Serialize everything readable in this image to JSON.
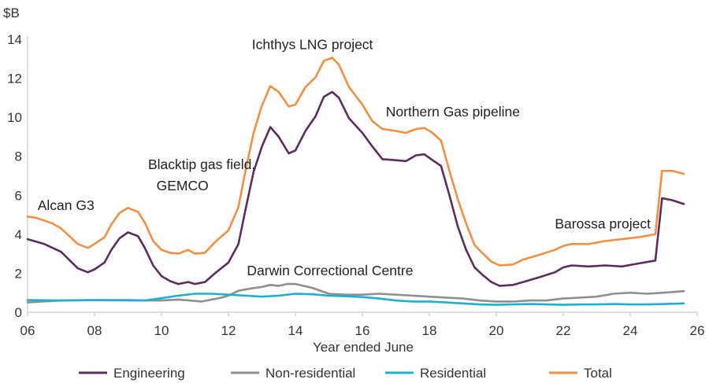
{
  "chart_data": {
    "type": "line",
    "ylabel": "$B",
    "xlabel": "Year ended June",
    "xlim": [
      2006,
      2026
    ],
    "ylim": [
      0,
      14
    ],
    "x_ticks": [
      2006,
      2008,
      2010,
      2012,
      2014,
      2016,
      2018,
      2020,
      2022,
      2024,
      2026
    ],
    "x_tick_labels": [
      "06",
      "08",
      "10",
      "12",
      "14",
      "16",
      "18",
      "20",
      "22",
      "24",
      "26"
    ],
    "y_ticks": [
      0,
      2,
      4,
      6,
      8,
      10,
      12,
      14
    ],
    "y_tick_labels": [
      "0",
      "2",
      "4",
      "6",
      "8",
      "10",
      "12",
      "14"
    ],
    "legend_position": "bottom",
    "series": [
      {
        "name": "Engineering",
        "color": "#5b2d5e",
        "points": [
          [
            2006.0,
            3.75
          ],
          [
            2006.5,
            3.5
          ],
          [
            2007.0,
            3.1
          ],
          [
            2007.5,
            2.25
          ],
          [
            2007.8,
            2.05
          ],
          [
            2008.0,
            2.2
          ],
          [
            2008.3,
            2.55
          ],
          [
            2008.5,
            3.2
          ],
          [
            2008.75,
            3.8
          ],
          [
            2009.0,
            4.1
          ],
          [
            2009.3,
            3.9
          ],
          [
            2009.5,
            3.3
          ],
          [
            2009.75,
            2.4
          ],
          [
            2010.0,
            1.85
          ],
          [
            2010.25,
            1.6
          ],
          [
            2010.5,
            1.45
          ],
          [
            2010.8,
            1.55
          ],
          [
            2011.0,
            1.45
          ],
          [
            2011.3,
            1.55
          ],
          [
            2011.6,
            2.0
          ],
          [
            2012.0,
            2.55
          ],
          [
            2012.3,
            3.5
          ],
          [
            2012.5,
            5.2
          ],
          [
            2012.75,
            7.2
          ],
          [
            2013.0,
            8.5
          ],
          [
            2013.25,
            9.5
          ],
          [
            2013.5,
            9.0
          ],
          [
            2013.8,
            8.15
          ],
          [
            2014.0,
            8.3
          ],
          [
            2014.3,
            9.3
          ],
          [
            2014.6,
            10.05
          ],
          [
            2014.85,
            11.05
          ],
          [
            2015.1,
            11.3
          ],
          [
            2015.3,
            11.0
          ],
          [
            2015.6,
            9.95
          ],
          [
            2016.0,
            9.2
          ],
          [
            2016.3,
            8.5
          ],
          [
            2016.6,
            7.85
          ],
          [
            2017.0,
            7.8
          ],
          [
            2017.3,
            7.75
          ],
          [
            2017.6,
            8.05
          ],
          [
            2017.85,
            8.1
          ],
          [
            2018.1,
            7.8
          ],
          [
            2018.35,
            7.5
          ],
          [
            2018.6,
            6.0
          ],
          [
            2018.85,
            4.4
          ],
          [
            2019.1,
            3.2
          ],
          [
            2019.35,
            2.3
          ],
          [
            2019.6,
            1.9
          ],
          [
            2019.85,
            1.55
          ],
          [
            2020.1,
            1.35
          ],
          [
            2020.5,
            1.4
          ],
          [
            2020.8,
            1.55
          ],
          [
            2021.3,
            1.8
          ],
          [
            2021.75,
            2.05
          ],
          [
            2022.0,
            2.3
          ],
          [
            2022.25,
            2.4
          ],
          [
            2022.75,
            2.35
          ],
          [
            2023.25,
            2.4
          ],
          [
            2023.75,
            2.35
          ],
          [
            2024.25,
            2.5
          ],
          [
            2024.75,
            2.65
          ],
          [
            2024.95,
            5.85
          ],
          [
            2025.25,
            5.75
          ],
          [
            2025.6,
            5.55
          ]
        ]
      },
      {
        "name": "Non-residential",
        "color": "#8f8f8f",
        "points": [
          [
            2006.0,
            0.5
          ],
          [
            2007.0,
            0.6
          ],
          [
            2008.0,
            0.62
          ],
          [
            2009.0,
            0.6
          ],
          [
            2010.0,
            0.6
          ],
          [
            2010.5,
            0.65
          ],
          [
            2011.2,
            0.55
          ],
          [
            2011.8,
            0.75
          ],
          [
            2012.0,
            0.85
          ],
          [
            2012.3,
            1.1
          ],
          [
            2012.6,
            1.2
          ],
          [
            2013.0,
            1.3
          ],
          [
            2013.25,
            1.4
          ],
          [
            2013.5,
            1.35
          ],
          [
            2013.75,
            1.45
          ],
          [
            2014.0,
            1.45
          ],
          [
            2014.5,
            1.25
          ],
          [
            2015.0,
            0.95
          ],
          [
            2015.5,
            0.9
          ],
          [
            2016.0,
            0.9
          ],
          [
            2016.5,
            0.95
          ],
          [
            2017.0,
            0.9
          ],
          [
            2017.5,
            0.85
          ],
          [
            2018.0,
            0.8
          ],
          [
            2018.5,
            0.75
          ],
          [
            2019.0,
            0.7
          ],
          [
            2019.5,
            0.6
          ],
          [
            2020.0,
            0.55
          ],
          [
            2020.5,
            0.55
          ],
          [
            2021.0,
            0.6
          ],
          [
            2021.5,
            0.6
          ],
          [
            2022.0,
            0.7
          ],
          [
            2022.5,
            0.75
          ],
          [
            2023.0,
            0.8
          ],
          [
            2023.5,
            0.95
          ],
          [
            2024.0,
            1.0
          ],
          [
            2024.5,
            0.95
          ],
          [
            2025.0,
            1.0
          ],
          [
            2025.6,
            1.08
          ]
        ]
      },
      {
        "name": "Residential",
        "color": "#1fb0d0",
        "points": [
          [
            2006.0,
            0.62
          ],
          [
            2007.0,
            0.6
          ],
          [
            2008.0,
            0.62
          ],
          [
            2009.0,
            0.62
          ],
          [
            2009.5,
            0.6
          ],
          [
            2010.0,
            0.72
          ],
          [
            2010.5,
            0.85
          ],
          [
            2011.0,
            0.95
          ],
          [
            2011.5,
            0.95
          ],
          [
            2012.0,
            0.9
          ],
          [
            2012.5,
            0.85
          ],
          [
            2013.0,
            0.8
          ],
          [
            2013.5,
            0.85
          ],
          [
            2014.0,
            0.95
          ],
          [
            2014.5,
            0.92
          ],
          [
            2015.0,
            0.85
          ],
          [
            2015.5,
            0.82
          ],
          [
            2016.0,
            0.78
          ],
          [
            2016.5,
            0.7
          ],
          [
            2017.0,
            0.6
          ],
          [
            2017.5,
            0.55
          ],
          [
            2018.0,
            0.55
          ],
          [
            2018.5,
            0.5
          ],
          [
            2019.0,
            0.45
          ],
          [
            2019.5,
            0.4
          ],
          [
            2020.0,
            0.38
          ],
          [
            2020.5,
            0.4
          ],
          [
            2021.0,
            0.42
          ],
          [
            2021.5,
            0.4
          ],
          [
            2022.0,
            0.38
          ],
          [
            2022.5,
            0.4
          ],
          [
            2023.0,
            0.4
          ],
          [
            2023.5,
            0.42
          ],
          [
            2024.0,
            0.4
          ],
          [
            2024.5,
            0.4
          ],
          [
            2025.0,
            0.42
          ],
          [
            2025.6,
            0.45
          ]
        ]
      },
      {
        "name": "Total",
        "color": "#f28f45",
        "points": [
          [
            2006.0,
            4.9
          ],
          [
            2006.25,
            4.85
          ],
          [
            2006.75,
            4.55
          ],
          [
            2007.0,
            4.3
          ],
          [
            2007.5,
            3.5
          ],
          [
            2007.8,
            3.3
          ],
          [
            2008.0,
            3.5
          ],
          [
            2008.3,
            3.85
          ],
          [
            2008.5,
            4.5
          ],
          [
            2008.75,
            5.1
          ],
          [
            2009.0,
            5.35
          ],
          [
            2009.3,
            5.15
          ],
          [
            2009.5,
            4.6
          ],
          [
            2009.75,
            3.65
          ],
          [
            2010.0,
            3.2
          ],
          [
            2010.25,
            3.05
          ],
          [
            2010.5,
            3.0
          ],
          [
            2010.8,
            3.2
          ],
          [
            2011.0,
            3.0
          ],
          [
            2011.3,
            3.05
          ],
          [
            2011.6,
            3.6
          ],
          [
            2012.0,
            4.2
          ],
          [
            2012.3,
            5.4
          ],
          [
            2012.5,
            7.2
          ],
          [
            2012.75,
            9.2
          ],
          [
            2013.0,
            10.6
          ],
          [
            2013.25,
            11.6
          ],
          [
            2013.5,
            11.3
          ],
          [
            2013.8,
            10.55
          ],
          [
            2014.0,
            10.65
          ],
          [
            2014.3,
            11.55
          ],
          [
            2014.6,
            12.05
          ],
          [
            2014.85,
            12.9
          ],
          [
            2015.1,
            13.05
          ],
          [
            2015.3,
            12.7
          ],
          [
            2015.6,
            11.55
          ],
          [
            2016.0,
            10.65
          ],
          [
            2016.3,
            9.8
          ],
          [
            2016.6,
            9.4
          ],
          [
            2017.0,
            9.3
          ],
          [
            2017.3,
            9.2
          ],
          [
            2017.6,
            9.4
          ],
          [
            2017.85,
            9.45
          ],
          [
            2018.1,
            9.2
          ],
          [
            2018.35,
            8.8
          ],
          [
            2018.6,
            7.25
          ],
          [
            2018.85,
            5.8
          ],
          [
            2019.1,
            4.55
          ],
          [
            2019.35,
            3.45
          ],
          [
            2019.6,
            3.0
          ],
          [
            2019.85,
            2.6
          ],
          [
            2020.1,
            2.4
          ],
          [
            2020.5,
            2.45
          ],
          [
            2020.8,
            2.7
          ],
          [
            2021.3,
            2.95
          ],
          [
            2021.75,
            3.2
          ],
          [
            2022.0,
            3.4
          ],
          [
            2022.25,
            3.5
          ],
          [
            2022.75,
            3.5
          ],
          [
            2023.25,
            3.65
          ],
          [
            2023.75,
            3.75
          ],
          [
            2024.25,
            3.85
          ],
          [
            2024.75,
            4.0
          ],
          [
            2024.95,
            7.25
          ],
          [
            2025.25,
            7.25
          ],
          [
            2025.6,
            7.1
          ]
        ]
      }
    ],
    "annotations": [
      {
        "id": "alcan",
        "text": "Alcan G3",
        "x": 2006.3,
        "y": 5.25
      },
      {
        "id": "blacktip-1",
        "text": "Blacktip gas field,",
        "x": 2009.6,
        "y": 7.35
      },
      {
        "id": "blacktip-2",
        "text": "GEMCO",
        "x": 2009.85,
        "y": 6.25
      },
      {
        "id": "ichthys",
        "text": "Ichthys LNG project",
        "x": 2012.7,
        "y": 13.5
      },
      {
        "id": "northern-gas",
        "text": "Northern Gas pipeline",
        "x": 2016.7,
        "y": 10.05
      },
      {
        "id": "darwin",
        "text": "Darwin Correctional Centre",
        "x": 2012.55,
        "y": 1.9
      },
      {
        "id": "barossa",
        "text": "Barossa project",
        "x": 2021.75,
        "y": 4.3
      }
    ]
  }
}
